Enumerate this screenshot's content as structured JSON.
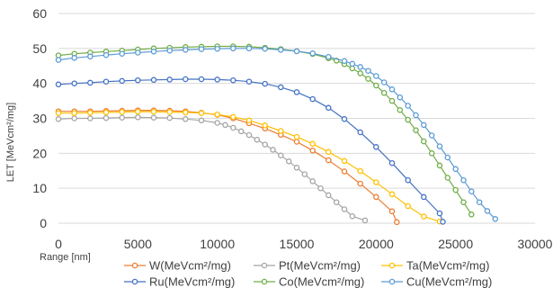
{
  "chart_data": {
    "type": "line",
    "title": "",
    "xlabel": "Range [nm]",
    "ylabel": "LET [MeVcm²/mg]",
    "xlim": [
      0,
      30000
    ],
    "ylim": [
      0,
      60
    ],
    "x_ticks": [
      0,
      5000,
      10000,
      15000,
      20000,
      25000,
      30000
    ],
    "y_ticks": [
      0,
      10,
      20,
      30,
      40,
      50,
      60
    ],
    "grid": "horizontal",
    "legend_position": "bottom",
    "series": [
      {
        "name": "W(MeVcm²/mg)",
        "color": "#ED7D31",
        "points": [
          [
            0,
            32
          ],
          [
            1000,
            32
          ],
          [
            2000,
            32
          ],
          [
            3000,
            32.1
          ],
          [
            4000,
            32.2
          ],
          [
            5000,
            32.3
          ],
          [
            6000,
            32.3
          ],
          [
            7000,
            32.2
          ],
          [
            8000,
            32.0
          ],
          [
            9000,
            31.6
          ],
          [
            10000,
            31.0
          ],
          [
            11000,
            30.0
          ],
          [
            12000,
            28.6
          ],
          [
            13000,
            27.1
          ],
          [
            14000,
            25.3
          ],
          [
            15000,
            23.3
          ],
          [
            16000,
            20.8
          ],
          [
            17000,
            18.0
          ],
          [
            18000,
            14.8
          ],
          [
            19000,
            11.3
          ],
          [
            20000,
            7.5
          ],
          [
            21000,
            3.4
          ],
          [
            21300,
            0.3
          ]
        ]
      },
      {
        "name": "Pt(MeVcm²/mg)",
        "color": "#A5A5A5",
        "points": [
          [
            0,
            29.8
          ],
          [
            1000,
            30
          ],
          [
            2000,
            30
          ],
          [
            3000,
            30.1
          ],
          [
            4000,
            30.2
          ],
          [
            5000,
            30.3
          ],
          [
            6000,
            30.2
          ],
          [
            7000,
            30.1
          ],
          [
            8000,
            29.8
          ],
          [
            9000,
            29.4
          ],
          [
            10000,
            28.7
          ],
          [
            10500,
            28.1
          ],
          [
            11000,
            27.3
          ],
          [
            11500,
            26.3
          ],
          [
            12000,
            25.2
          ],
          [
            12500,
            23.9
          ],
          [
            13000,
            22.5
          ],
          [
            13500,
            21.0
          ],
          [
            14000,
            19.4
          ],
          [
            14500,
            17.7
          ],
          [
            15000,
            15.9
          ],
          [
            15500,
            14.0
          ],
          [
            16000,
            12.0
          ],
          [
            16500,
            10.0
          ],
          [
            17000,
            8.0
          ],
          [
            17500,
            6.0
          ],
          [
            18000,
            4.0
          ],
          [
            18500,
            2.0
          ],
          [
            19300,
            0.8
          ]
        ]
      },
      {
        "name": "Ta(MeVcm²/mg)",
        "color": "#FFC000",
        "points": [
          [
            0,
            31.5
          ],
          [
            1000,
            31.5
          ],
          [
            2000,
            31.6
          ],
          [
            3000,
            31.7
          ],
          [
            4000,
            31.8
          ],
          [
            5000,
            31.9
          ],
          [
            6000,
            31.9
          ],
          [
            7000,
            31.8
          ],
          [
            8000,
            31.7
          ],
          [
            9000,
            31.5
          ],
          [
            10000,
            31.1
          ],
          [
            11000,
            30.4
          ],
          [
            12000,
            29.4
          ],
          [
            13000,
            28.0
          ],
          [
            14000,
            26.4
          ],
          [
            15000,
            24.7
          ],
          [
            16000,
            22.7
          ],
          [
            17000,
            20.4
          ],
          [
            18000,
            17.8
          ],
          [
            19000,
            14.9
          ],
          [
            20000,
            11.7
          ],
          [
            21000,
            8.3
          ],
          [
            22000,
            4.9
          ],
          [
            23000,
            1.9
          ],
          [
            24000,
            0.5
          ]
        ]
      },
      {
        "name": "Ru(MeVcm²/mg)",
        "color": "#4472C4",
        "points": [
          [
            0,
            39.7
          ],
          [
            1000,
            40
          ],
          [
            2000,
            40.2
          ],
          [
            3000,
            40.5
          ],
          [
            4000,
            40.7
          ],
          [
            5000,
            40.9
          ],
          [
            6000,
            41.0
          ],
          [
            7000,
            41.1
          ],
          [
            8000,
            41.2
          ],
          [
            9000,
            41.2
          ],
          [
            10000,
            41.1
          ],
          [
            11000,
            40.9
          ],
          [
            12000,
            40.5
          ],
          [
            13000,
            39.9
          ],
          [
            14000,
            38.9
          ],
          [
            15000,
            37.5
          ],
          [
            16000,
            35.5
          ],
          [
            17000,
            33.0
          ],
          [
            18000,
            29.8
          ],
          [
            19000,
            26.0
          ],
          [
            20000,
            21.8
          ],
          [
            21000,
            17.2
          ],
          [
            22000,
            12.3
          ],
          [
            23000,
            7.5
          ],
          [
            24000,
            2.8
          ],
          [
            24200,
            0.4
          ]
        ]
      },
      {
        "name": "Co(MeVcm²/mg)",
        "color": "#70AD47",
        "points": [
          [
            0,
            48
          ],
          [
            1000,
            48.5
          ],
          [
            2000,
            48.8
          ],
          [
            3000,
            49.1
          ],
          [
            4000,
            49.4
          ],
          [
            5000,
            49.7
          ],
          [
            6000,
            50
          ],
          [
            7000,
            50.2
          ],
          [
            8000,
            50.4
          ],
          [
            9000,
            50.5
          ],
          [
            10000,
            50.6
          ],
          [
            11000,
            50.6
          ],
          [
            12000,
            50.5
          ],
          [
            13000,
            50.2
          ],
          [
            14000,
            49.8
          ],
          [
            15000,
            49.2
          ],
          [
            16000,
            48.4
          ],
          [
            17000,
            47.2
          ],
          [
            17500,
            46.5
          ],
          [
            18000,
            45.5
          ],
          [
            18500,
            44.3
          ],
          [
            19000,
            42.9
          ],
          [
            19500,
            41.3
          ],
          [
            20000,
            39.4
          ],
          [
            20500,
            37.3
          ],
          [
            21000,
            35.0
          ],
          [
            21500,
            32.4
          ],
          [
            22000,
            29.6
          ],
          [
            22500,
            26.6
          ],
          [
            23000,
            23.4
          ],
          [
            23500,
            20.0
          ],
          [
            24000,
            16.5
          ],
          [
            24500,
            13.0
          ],
          [
            25000,
            9.5
          ],
          [
            25500,
            6.0
          ],
          [
            26000,
            2.5
          ]
        ]
      },
      {
        "name": "Cu(MeVcm²/mg)",
        "color": "#5B9BD5",
        "points": [
          [
            0,
            46.7
          ],
          [
            1000,
            47.3
          ],
          [
            2000,
            47.7
          ],
          [
            3000,
            48.1
          ],
          [
            4000,
            48.5
          ],
          [
            5000,
            48.8
          ],
          [
            6000,
            49.1
          ],
          [
            7000,
            49.4
          ],
          [
            8000,
            49.6
          ],
          [
            9000,
            49.8
          ],
          [
            10000,
            49.9
          ],
          [
            11000,
            50.0
          ],
          [
            12000,
            50.0
          ],
          [
            13000,
            49.9
          ],
          [
            14000,
            49.6
          ],
          [
            15000,
            49.2
          ],
          [
            16000,
            48.6
          ],
          [
            17000,
            47.6
          ],
          [
            18000,
            46.4
          ],
          [
            18500,
            45.6
          ],
          [
            19000,
            44.7
          ],
          [
            19500,
            43.6
          ],
          [
            20000,
            42.1
          ],
          [
            20500,
            40.3
          ],
          [
            21000,
            38.3
          ],
          [
            21500,
            36.0
          ],
          [
            22000,
            33.6
          ],
          [
            22500,
            30.9
          ],
          [
            23000,
            28.1
          ],
          [
            23500,
            25.1
          ],
          [
            24000,
            22.0
          ],
          [
            24500,
            18.8
          ],
          [
            25000,
            15.5
          ],
          [
            25500,
            12.3
          ],
          [
            26000,
            9.1
          ],
          [
            26500,
            6.0
          ],
          [
            27000,
            3.5
          ],
          [
            27500,
            1.2
          ]
        ]
      }
    ]
  }
}
